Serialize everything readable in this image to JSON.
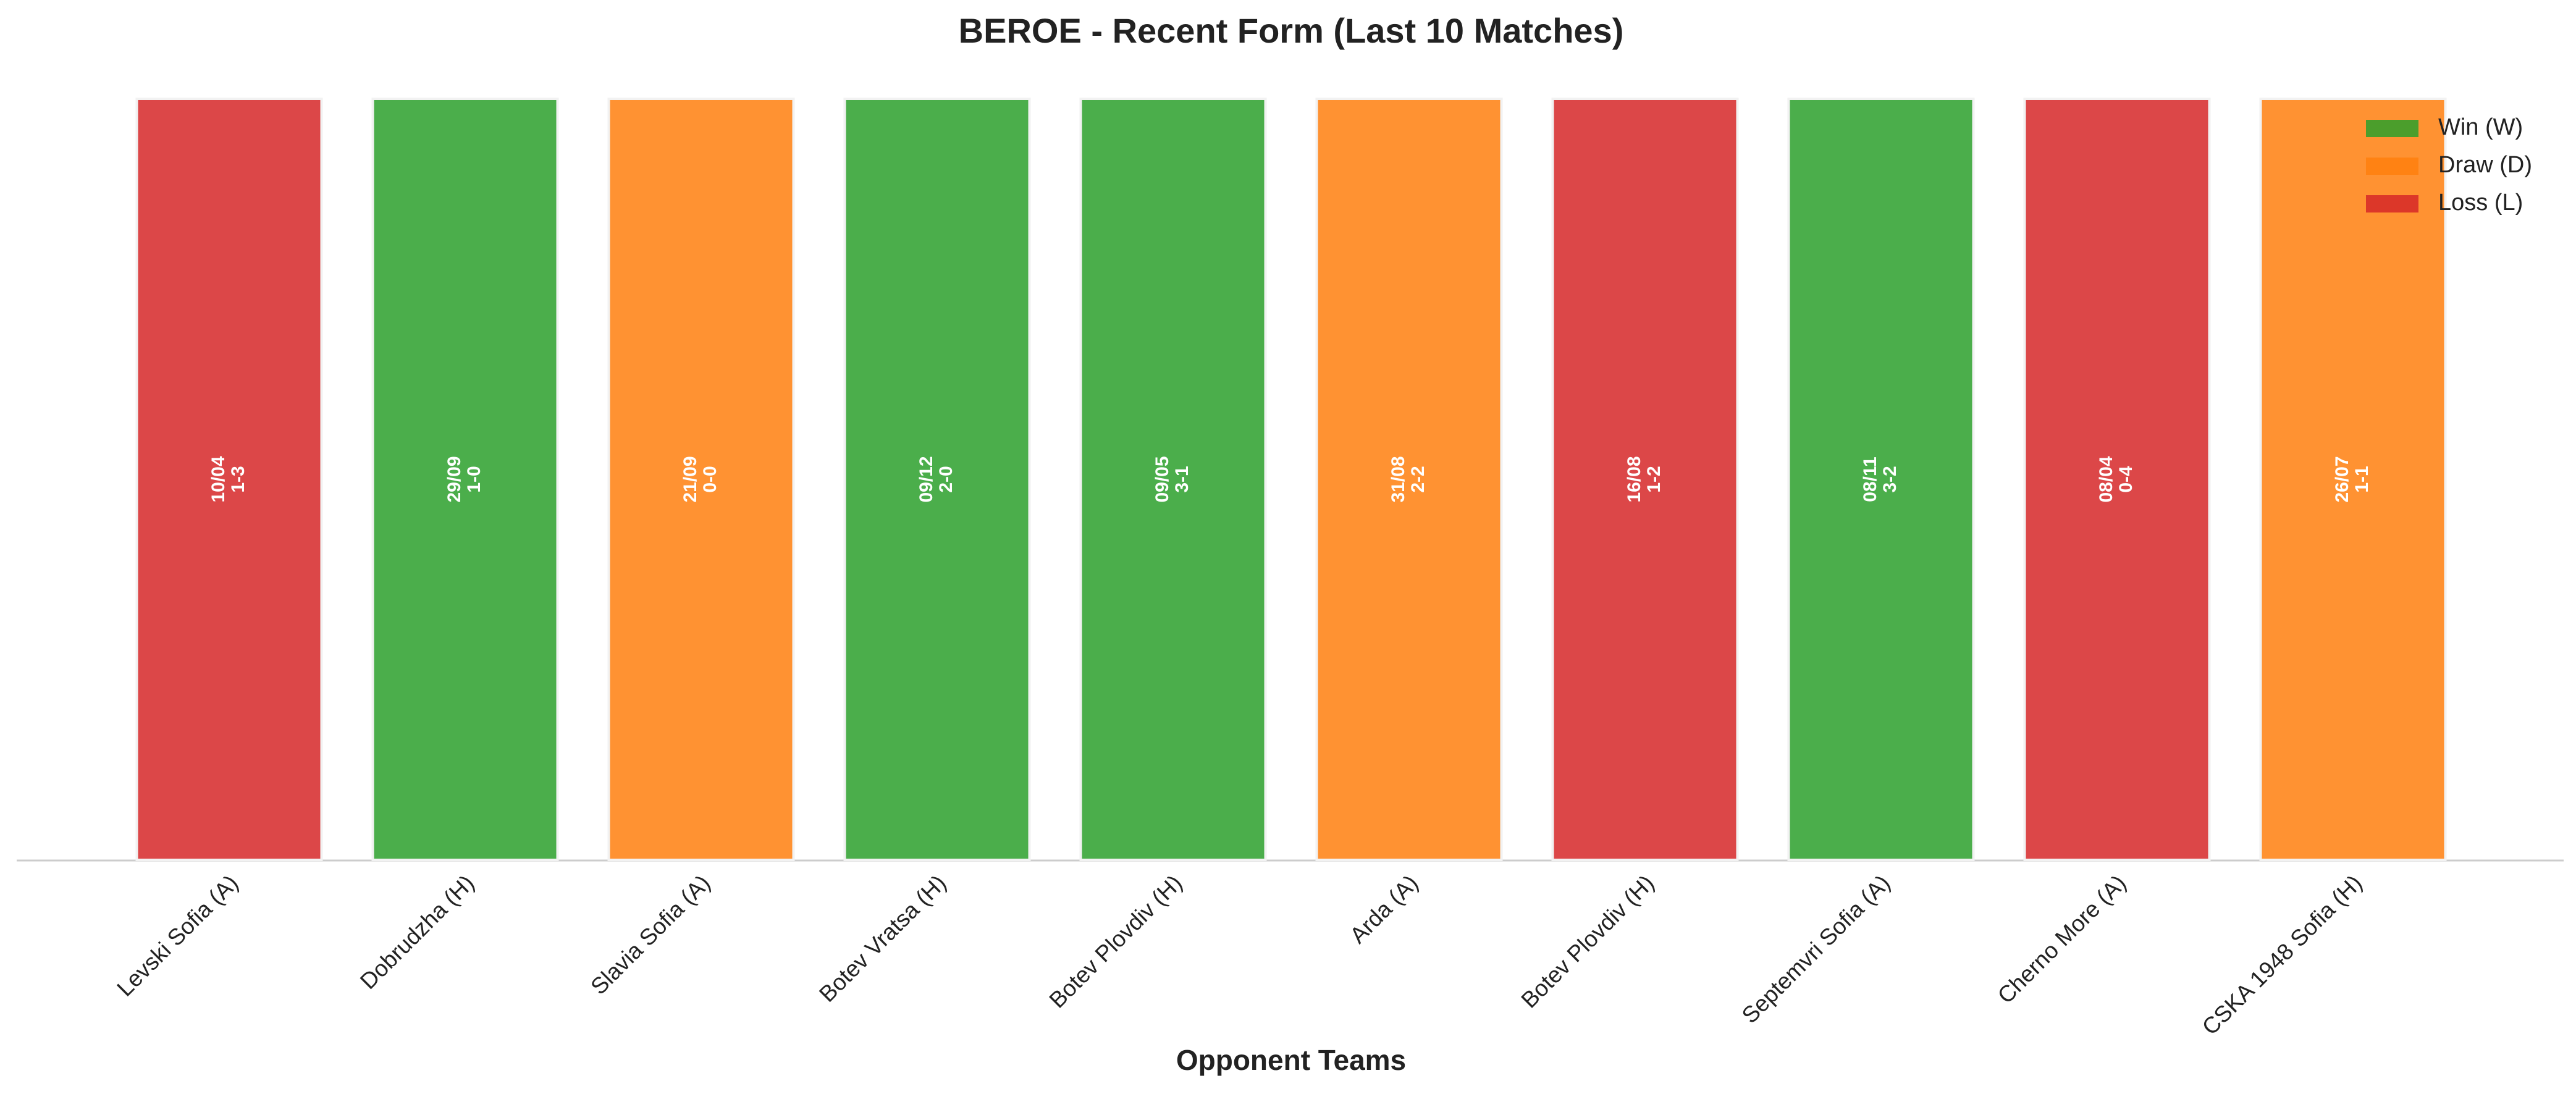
{
  "chart_data": {
    "type": "bar",
    "title": "BEROE - Recent Form (Last 10 Matches)",
    "x_label": "Opponent Teams",
    "categories": [
      "Levski Sofia (A)",
      "Dobrudzha (H)",
      "Slavia Sofia (A)",
      "Botev Vratsa (H)",
      "Botev Plovdiv (H)",
      "Arda (A)",
      "Botev Plovdiv (H)",
      "Septemvri Sofia (A)",
      "Cherno More (A)",
      "CSKA 1948 Sofia (H)"
    ],
    "dates": [
      "10/04",
      "29/09",
      "21/09",
      "09/12",
      "09/05",
      "31/08",
      "16/08",
      "08/11",
      "08/04",
      "26/07"
    ],
    "scores": [
      "1-3",
      "1-0",
      "0-0",
      "2-0",
      "3-1",
      "2-2",
      "1-2",
      "3-2",
      "0-4",
      "1-1"
    ],
    "series": [
      {
        "name": "Win (W)",
        "color": "#2ca02c",
        "values": [
          null,
          1,
          null,
          1,
          1,
          null,
          null,
          1,
          null,
          null
        ]
      },
      {
        "name": "Draw (D)",
        "color": "#ff7f0e",
        "values": [
          null,
          null,
          1,
          null,
          null,
          1,
          null,
          null,
          null,
          1
        ]
      },
      {
        "name": "Loss (L)",
        "color": "#d62728",
        "values": [
          1,
          null,
          null,
          null,
          null,
          null,
          1,
          null,
          1,
          null
        ]
      }
    ],
    "ylim": [
      0,
      1
    ],
    "legend": "upper right"
  }
}
